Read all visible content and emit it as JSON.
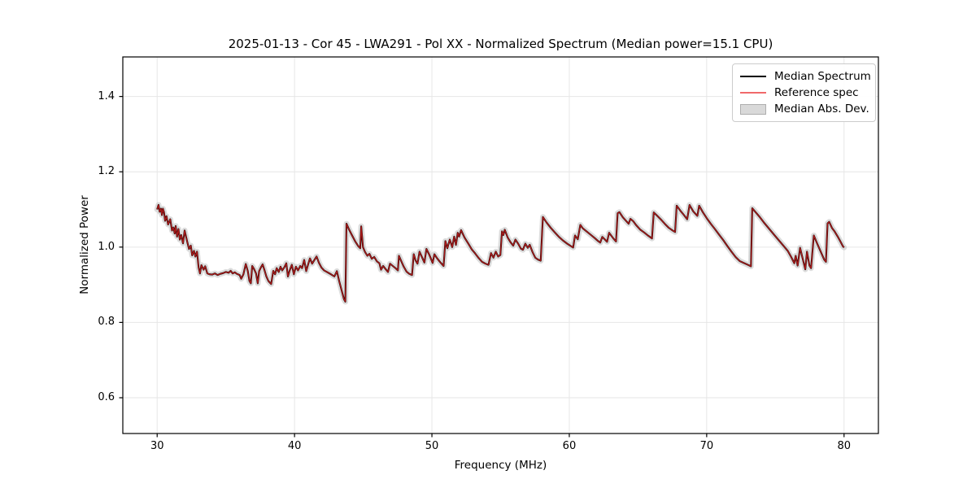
{
  "title": "2025-01-13 - Cor 45 - LWA291 - Pol XX - Normalized Spectrum (Median power=15.1 CPU)",
  "axes": {
    "xlabel": "Frequency (MHz)",
    "ylabel": "Normalized Power",
    "xticks": [
      30,
      40,
      50,
      60,
      70,
      80
    ],
    "xtick_labels": [
      "30",
      "40",
      "50",
      "60",
      "70",
      "80"
    ],
    "yticks": [
      0.6,
      0.8,
      1.0,
      1.2,
      1.4
    ],
    "ytick_labels": [
      "0.6",
      "0.8",
      "1.0",
      "1.2",
      "1.4"
    ],
    "grid": true,
    "grid_color": "#e6e6e6",
    "spine_color": "#000000"
  },
  "legend": {
    "position": "upper right",
    "items": [
      {
        "label": "Median Spectrum",
        "type": "line",
        "color": "#000000"
      },
      {
        "label": "Reference spec",
        "type": "line",
        "color": "#f0696a"
      },
      {
        "label": "Median Abs. Dev.",
        "type": "patch",
        "fill": "#d9d9d9",
        "edge": "#aeaeae"
      }
    ]
  },
  "chart_data": {
    "type": "line",
    "title": "2025-01-13 - Cor 45 - LWA291 - Pol XX - Normalized Spectrum (Median power=15.1 CPU)",
    "xlabel": "Frequency (MHz)",
    "ylabel": "Normalized Power",
    "xlim": [
      27.5,
      82.5
    ],
    "ylim": [
      0.505,
      1.505
    ],
    "legend_position": "upper right",
    "grid": true,
    "series": [
      {
        "name": "Median Spectrum",
        "color": "#000000",
        "width": 2.1,
        "points": [
          [
            30.0,
            1.1
          ],
          [
            30.1,
            1.112
          ],
          [
            30.18,
            1.094
          ],
          [
            30.28,
            1.102
          ],
          [
            30.35,
            1.085
          ],
          [
            30.42,
            1.102
          ],
          [
            30.5,
            1.092
          ],
          [
            30.58,
            1.07
          ],
          [
            30.68,
            1.082
          ],
          [
            30.8,
            1.06
          ],
          [
            30.95,
            1.074
          ],
          [
            31.08,
            1.044
          ],
          [
            31.18,
            1.052
          ],
          [
            31.28,
            1.036
          ],
          [
            31.35,
            1.056
          ],
          [
            31.45,
            1.028
          ],
          [
            31.55,
            1.048
          ],
          [
            31.65,
            1.02
          ],
          [
            31.75,
            1.032
          ],
          [
            31.88,
            1.01
          ],
          [
            32.0,
            1.044
          ],
          [
            32.18,
            1.016
          ],
          [
            32.32,
            0.995
          ],
          [
            32.45,
            1.004
          ],
          [
            32.55,
            0.978
          ],
          [
            32.68,
            0.99
          ],
          [
            32.78,
            0.975
          ],
          [
            32.9,
            0.988
          ],
          [
            33.02,
            0.946
          ],
          [
            33.12,
            0.93
          ],
          [
            33.22,
            0.952
          ],
          [
            33.38,
            0.94
          ],
          [
            33.5,
            0.949
          ],
          [
            33.65,
            0.93
          ],
          [
            33.8,
            0.928
          ],
          [
            34.0,
            0.927
          ],
          [
            34.2,
            0.93
          ],
          [
            34.4,
            0.926
          ],
          [
            34.6,
            0.929
          ],
          [
            34.8,
            0.931
          ],
          [
            35.0,
            0.934
          ],
          [
            35.2,
            0.932
          ],
          [
            35.35,
            0.937
          ],
          [
            35.5,
            0.93
          ],
          [
            35.65,
            0.933
          ],
          [
            35.8,
            0.929
          ],
          [
            36.0,
            0.926
          ],
          [
            36.12,
            0.916
          ],
          [
            36.28,
            0.928
          ],
          [
            36.45,
            0.955
          ],
          [
            36.6,
            0.936
          ],
          [
            36.72,
            0.91
          ],
          [
            36.82,
            0.904
          ],
          [
            36.92,
            0.95
          ],
          [
            37.05,
            0.942
          ],
          [
            37.2,
            0.93
          ],
          [
            37.32,
            0.904
          ],
          [
            37.42,
            0.936
          ],
          [
            37.55,
            0.946
          ],
          [
            37.68,
            0.954
          ],
          [
            37.82,
            0.938
          ],
          [
            37.95,
            0.922
          ],
          [
            38.1,
            0.91
          ],
          [
            38.3,
            0.902
          ],
          [
            38.45,
            0.937
          ],
          [
            38.58,
            0.928
          ],
          [
            38.7,
            0.944
          ],
          [
            38.85,
            0.934
          ],
          [
            38.98,
            0.948
          ],
          [
            39.1,
            0.938
          ],
          [
            39.25,
            0.946
          ],
          [
            39.4,
            0.957
          ],
          [
            39.52,
            0.922
          ],
          [
            39.65,
            0.938
          ],
          [
            39.8,
            0.953
          ],
          [
            39.95,
            0.928
          ],
          [
            40.1,
            0.948
          ],
          [
            40.25,
            0.938
          ],
          [
            40.42,
            0.95
          ],
          [
            40.55,
            0.944
          ],
          [
            40.7,
            0.966
          ],
          [
            40.85,
            0.936
          ],
          [
            40.98,
            0.953
          ],
          [
            41.12,
            0.97
          ],
          [
            41.28,
            0.956
          ],
          [
            41.45,
            0.966
          ],
          [
            41.6,
            0.975
          ],
          [
            41.78,
            0.958
          ],
          [
            41.95,
            0.946
          ],
          [
            42.15,
            0.938
          ],
          [
            42.4,
            0.933
          ],
          [
            42.65,
            0.928
          ],
          [
            42.9,
            0.922
          ],
          [
            43.08,
            0.936
          ],
          [
            43.25,
            0.91
          ],
          [
            43.45,
            0.882
          ],
          [
            43.6,
            0.862
          ],
          [
            43.7,
            0.855
          ],
          [
            43.78,
            1.062
          ],
          [
            43.95,
            1.048
          ],
          [
            44.15,
            1.034
          ],
          [
            44.4,
            1.016
          ],
          [
            44.65,
            1.002
          ],
          [
            44.78,
            0.997
          ],
          [
            44.85,
            1.055
          ],
          [
            44.98,
            1.0
          ],
          [
            45.12,
            0.988
          ],
          [
            45.3,
            0.977
          ],
          [
            45.45,
            0.982
          ],
          [
            45.62,
            0.969
          ],
          [
            45.8,
            0.974
          ],
          [
            46.0,
            0.962
          ],
          [
            46.18,
            0.957
          ],
          [
            46.3,
            0.94
          ],
          [
            46.45,
            0.95
          ],
          [
            46.62,
            0.942
          ],
          [
            46.8,
            0.934
          ],
          [
            46.95,
            0.956
          ],
          [
            47.15,
            0.95
          ],
          [
            47.35,
            0.944
          ],
          [
            47.52,
            0.938
          ],
          [
            47.6,
            0.977
          ],
          [
            47.78,
            0.962
          ],
          [
            47.95,
            0.948
          ],
          [
            48.15,
            0.935
          ],
          [
            48.35,
            0.929
          ],
          [
            48.55,
            0.926
          ],
          [
            48.68,
            0.981
          ],
          [
            48.82,
            0.964
          ],
          [
            48.95,
            0.956
          ],
          [
            49.1,
            0.988
          ],
          [
            49.28,
            0.973
          ],
          [
            49.45,
            0.959
          ],
          [
            49.6,
            0.995
          ],
          [
            49.78,
            0.982
          ],
          [
            49.92,
            0.97
          ],
          [
            50.05,
            0.958
          ],
          [
            50.18,
            0.981
          ],
          [
            50.38,
            0.97
          ],
          [
            50.6,
            0.96
          ],
          [
            50.85,
            0.95
          ],
          [
            50.98,
            1.016
          ],
          [
            51.12,
            0.997
          ],
          [
            51.3,
            1.02
          ],
          [
            51.48,
            1.0
          ],
          [
            51.62,
            1.028
          ],
          [
            51.75,
            1.006
          ],
          [
            51.88,
            1.038
          ],
          [
            51.98,
            1.028
          ],
          [
            52.12,
            1.045
          ],
          [
            52.38,
            1.025
          ],
          [
            52.65,
            1.009
          ],
          [
            52.9,
            0.994
          ],
          [
            53.15,
            0.983
          ],
          [
            53.4,
            0.971
          ],
          [
            53.65,
            0.961
          ],
          [
            53.9,
            0.956
          ],
          [
            54.12,
            0.953
          ],
          [
            54.3,
            0.984
          ],
          [
            54.48,
            0.972
          ],
          [
            54.65,
            0.988
          ],
          [
            54.82,
            0.975
          ],
          [
            54.98,
            0.979
          ],
          [
            55.1,
            1.042
          ],
          [
            55.2,
            1.032
          ],
          [
            55.3,
            1.046
          ],
          [
            55.52,
            1.025
          ],
          [
            55.72,
            1.013
          ],
          [
            55.92,
            1.004
          ],
          [
            56.08,
            1.02
          ],
          [
            56.28,
            1.009
          ],
          [
            56.48,
            0.996
          ],
          [
            56.62,
            0.993
          ],
          [
            56.8,
            1.009
          ],
          [
            56.98,
            0.998
          ],
          [
            57.12,
            1.006
          ],
          [
            57.32,
            0.987
          ],
          [
            57.52,
            0.972
          ],
          [
            57.72,
            0.967
          ],
          [
            57.92,
            0.964
          ],
          [
            58.08,
            1.08
          ],
          [
            58.35,
            1.065
          ],
          [
            58.65,
            1.051
          ],
          [
            58.95,
            1.039
          ],
          [
            59.25,
            1.027
          ],
          [
            59.55,
            1.017
          ],
          [
            59.85,
            1.009
          ],
          [
            60.1,
            1.003
          ],
          [
            60.28,
            0.999
          ],
          [
            60.42,
            1.031
          ],
          [
            60.62,
            1.021
          ],
          [
            60.8,
            1.059
          ],
          [
            60.98,
            1.05
          ],
          [
            61.25,
            1.042
          ],
          [
            61.55,
            1.033
          ],
          [
            61.85,
            1.024
          ],
          [
            62.1,
            1.016
          ],
          [
            62.25,
            1.012
          ],
          [
            62.4,
            1.027
          ],
          [
            62.6,
            1.02
          ],
          [
            62.75,
            1.014
          ],
          [
            62.9,
            1.038
          ],
          [
            63.08,
            1.029
          ],
          [
            63.25,
            1.021
          ],
          [
            63.4,
            1.015
          ],
          [
            63.52,
            1.09
          ],
          [
            63.65,
            1.093
          ],
          [
            63.9,
            1.079
          ],
          [
            64.15,
            1.069
          ],
          [
            64.32,
            1.062
          ],
          [
            64.45,
            1.075
          ],
          [
            64.65,
            1.069
          ],
          [
            64.85,
            1.059
          ],
          [
            65.15,
            1.047
          ],
          [
            65.45,
            1.039
          ],
          [
            65.75,
            1.03
          ],
          [
            66.02,
            1.023
          ],
          [
            66.15,
            1.092
          ],
          [
            66.4,
            1.083
          ],
          [
            66.65,
            1.074
          ],
          [
            66.95,
            1.062
          ],
          [
            67.25,
            1.051
          ],
          [
            67.52,
            1.044
          ],
          [
            67.7,
            1.04
          ],
          [
            67.82,
            1.11
          ],
          [
            68.08,
            1.097
          ],
          [
            68.35,
            1.085
          ],
          [
            68.58,
            1.074
          ],
          [
            68.75,
            1.112
          ],
          [
            69.02,
            1.095
          ],
          [
            69.32,
            1.083
          ],
          [
            69.45,
            1.11
          ],
          [
            69.72,
            1.093
          ],
          [
            70.0,
            1.077
          ],
          [
            70.3,
            1.062
          ],
          [
            70.6,
            1.048
          ],
          [
            70.9,
            1.033
          ],
          [
            71.2,
            1.019
          ],
          [
            71.5,
            1.003
          ],
          [
            71.8,
            0.988
          ],
          [
            72.1,
            0.974
          ],
          [
            72.4,
            0.963
          ],
          [
            72.7,
            0.958
          ],
          [
            73.0,
            0.953
          ],
          [
            73.22,
            0.949
          ],
          [
            73.32,
            1.103
          ],
          [
            73.6,
            1.091
          ],
          [
            73.88,
            1.079
          ],
          [
            74.15,
            1.066
          ],
          [
            74.45,
            1.053
          ],
          [
            74.72,
            1.041
          ],
          [
            75.0,
            1.029
          ],
          [
            75.3,
            1.016
          ],
          [
            75.6,
            1.003
          ],
          [
            75.9,
            0.99
          ],
          [
            76.15,
            0.974
          ],
          [
            76.38,
            0.957
          ],
          [
            76.48,
            0.977
          ],
          [
            76.62,
            0.951
          ],
          [
            76.8,
            0.998
          ],
          [
            77.02,
            0.965
          ],
          [
            77.18,
            0.941
          ],
          [
            77.3,
            0.988
          ],
          [
            77.48,
            0.951
          ],
          [
            77.6,
            0.944
          ],
          [
            77.8,
            1.031
          ],
          [
            78.05,
            1.009
          ],
          [
            78.3,
            0.988
          ],
          [
            78.55,
            0.967
          ],
          [
            78.68,
            0.961
          ],
          [
            78.8,
            1.063
          ],
          [
            78.92,
            1.067
          ],
          [
            79.12,
            1.051
          ],
          [
            79.32,
            1.041
          ],
          [
            79.52,
            1.029
          ],
          [
            79.72,
            1.016
          ],
          [
            79.92,
            1.002
          ],
          [
            80.0,
            0.999
          ]
        ]
      },
      {
        "name": "Reference spec",
        "color": "#e02020",
        "opacity": 0.75,
        "width": 1.4,
        "points_same_as": "Median Spectrum"
      },
      {
        "name": "Median Abs. Dev.",
        "color": "#c9c9c9",
        "opacity": 0.65,
        "band_stroke_width": 7,
        "points_same_as": "Median Spectrum"
      }
    ]
  }
}
